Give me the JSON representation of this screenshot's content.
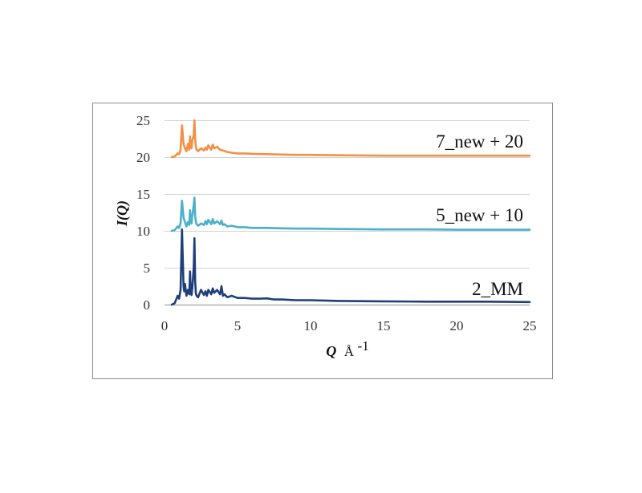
{
  "chart_data": {
    "type": "line",
    "title": "",
    "xlabel": {
      "symbol": "Q",
      "unit": "Å",
      "unit_exponent": "-1"
    },
    "ylabel": "I(Q)",
    "xlim": [
      0,
      25
    ],
    "ylim": [
      0,
      25
    ],
    "x_ticks": [
      "0",
      "5",
      "10",
      "15",
      "20",
      "25"
    ],
    "y_ticks": [
      "0",
      "5",
      "10",
      "15",
      "20",
      "25"
    ],
    "grid": "horizontal",
    "legend": "inline labels right of each curve",
    "series": [
      {
        "name": "2_MM",
        "offset": 0,
        "color": "#1f3f78",
        "x": [
          0.5,
          0.7,
          0.9,
          1.0,
          1.1,
          1.2,
          1.3,
          1.35,
          1.4,
          1.5,
          1.6,
          1.7,
          1.75,
          1.8,
          1.85,
          1.9,
          2.0,
          2.05,
          2.1,
          2.15,
          2.2,
          2.3,
          2.5,
          2.7,
          2.8,
          2.9,
          3.0,
          3.2,
          3.3,
          3.4,
          3.6,
          3.8,
          3.9,
          4.0,
          4.1,
          4.3,
          4.6,
          5.0,
          5.5,
          6.0,
          6.5,
          7.0,
          7.5,
          8.0,
          9.0,
          10.0,
          12.0,
          15.0,
          18.0,
          20.0,
          22.0,
          25.0
        ],
        "y": [
          0.0,
          0.2,
          1.2,
          0.8,
          2.0,
          10.2,
          2.5,
          1.8,
          2.8,
          1.2,
          2.0,
          1.4,
          4.5,
          1.6,
          1.3,
          2.2,
          5.0,
          9.0,
          3.2,
          1.5,
          1.2,
          1.0,
          2.0,
          1.3,
          1.8,
          1.2,
          2.0,
          1.4,
          2.2,
          1.6,
          2.0,
          1.4,
          2.5,
          1.2,
          1.4,
          1.0,
          1.2,
          0.9,
          0.9,
          0.8,
          0.8,
          0.85,
          0.7,
          0.7,
          0.6,
          0.6,
          0.5,
          0.45,
          0.4,
          0.4,
          0.4,
          0.35
        ]
      },
      {
        "name": "5_new + 10",
        "offset": 10,
        "color": "#4bb0c9",
        "x": [
          0.5,
          0.7,
          0.9,
          1.0,
          1.1,
          1.2,
          1.3,
          1.4,
          1.5,
          1.6,
          1.7,
          1.75,
          1.8,
          1.85,
          1.9,
          2.0,
          2.05,
          2.1,
          2.15,
          2.2,
          2.3,
          2.5,
          2.7,
          2.8,
          2.9,
          3.0,
          3.2,
          3.3,
          3.4,
          3.6,
          3.8,
          3.9,
          4.0,
          4.1,
          4.3,
          4.6,
          5.0,
          5.5,
          6.0,
          7.0,
          8.0,
          9.0,
          10.0,
          12.0,
          15.0,
          18.0,
          20.0,
          25.0
        ],
        "y": [
          10.0,
          10.1,
          10.6,
          10.4,
          11.0,
          14.1,
          11.8,
          11.2,
          10.6,
          11.2,
          10.8,
          12.8,
          11.5,
          11.0,
          12.0,
          13.5,
          14.5,
          12.0,
          11.2,
          10.9,
          10.7,
          11.0,
          10.8,
          11.3,
          10.9,
          11.5,
          10.9,
          11.6,
          11.0,
          11.3,
          10.9,
          11.4,
          10.8,
          10.9,
          10.6,
          10.7,
          10.5,
          10.5,
          10.4,
          10.4,
          10.35,
          10.3,
          10.3,
          10.25,
          10.2,
          10.2,
          10.15,
          10.15
        ]
      },
      {
        "name": "7_new + 20",
        "offset": 20,
        "color": "#f29045",
        "x": [
          0.5,
          0.7,
          0.9,
          1.0,
          1.1,
          1.2,
          1.3,
          1.4,
          1.5,
          1.6,
          1.7,
          1.75,
          1.8,
          1.85,
          1.9,
          2.0,
          2.05,
          2.1,
          2.15,
          2.2,
          2.3,
          2.5,
          2.7,
          2.8,
          2.9,
          3.0,
          3.2,
          3.3,
          3.4,
          3.6,
          3.8,
          4.0,
          4.3,
          4.6,
          5.0,
          5.5,
          6.0,
          7.0,
          8.0,
          9.0,
          10.0,
          12.0,
          15.0,
          18.0,
          20.0,
          25.0
        ],
        "y": [
          20.0,
          20.1,
          20.5,
          20.4,
          21.0,
          24.3,
          21.8,
          21.2,
          20.8,
          21.8,
          21.0,
          22.8,
          21.6,
          21.2,
          22.2,
          23.0,
          25.0,
          22.5,
          21.4,
          21.0,
          20.8,
          21.2,
          20.9,
          21.3,
          21.0,
          21.6,
          21.0,
          21.7,
          21.2,
          21.4,
          21.0,
          20.9,
          20.7,
          20.6,
          20.5,
          20.5,
          20.45,
          20.4,
          20.35,
          20.3,
          20.3,
          20.25,
          20.2,
          20.2,
          20.2,
          20.2
        ]
      }
    ]
  }
}
